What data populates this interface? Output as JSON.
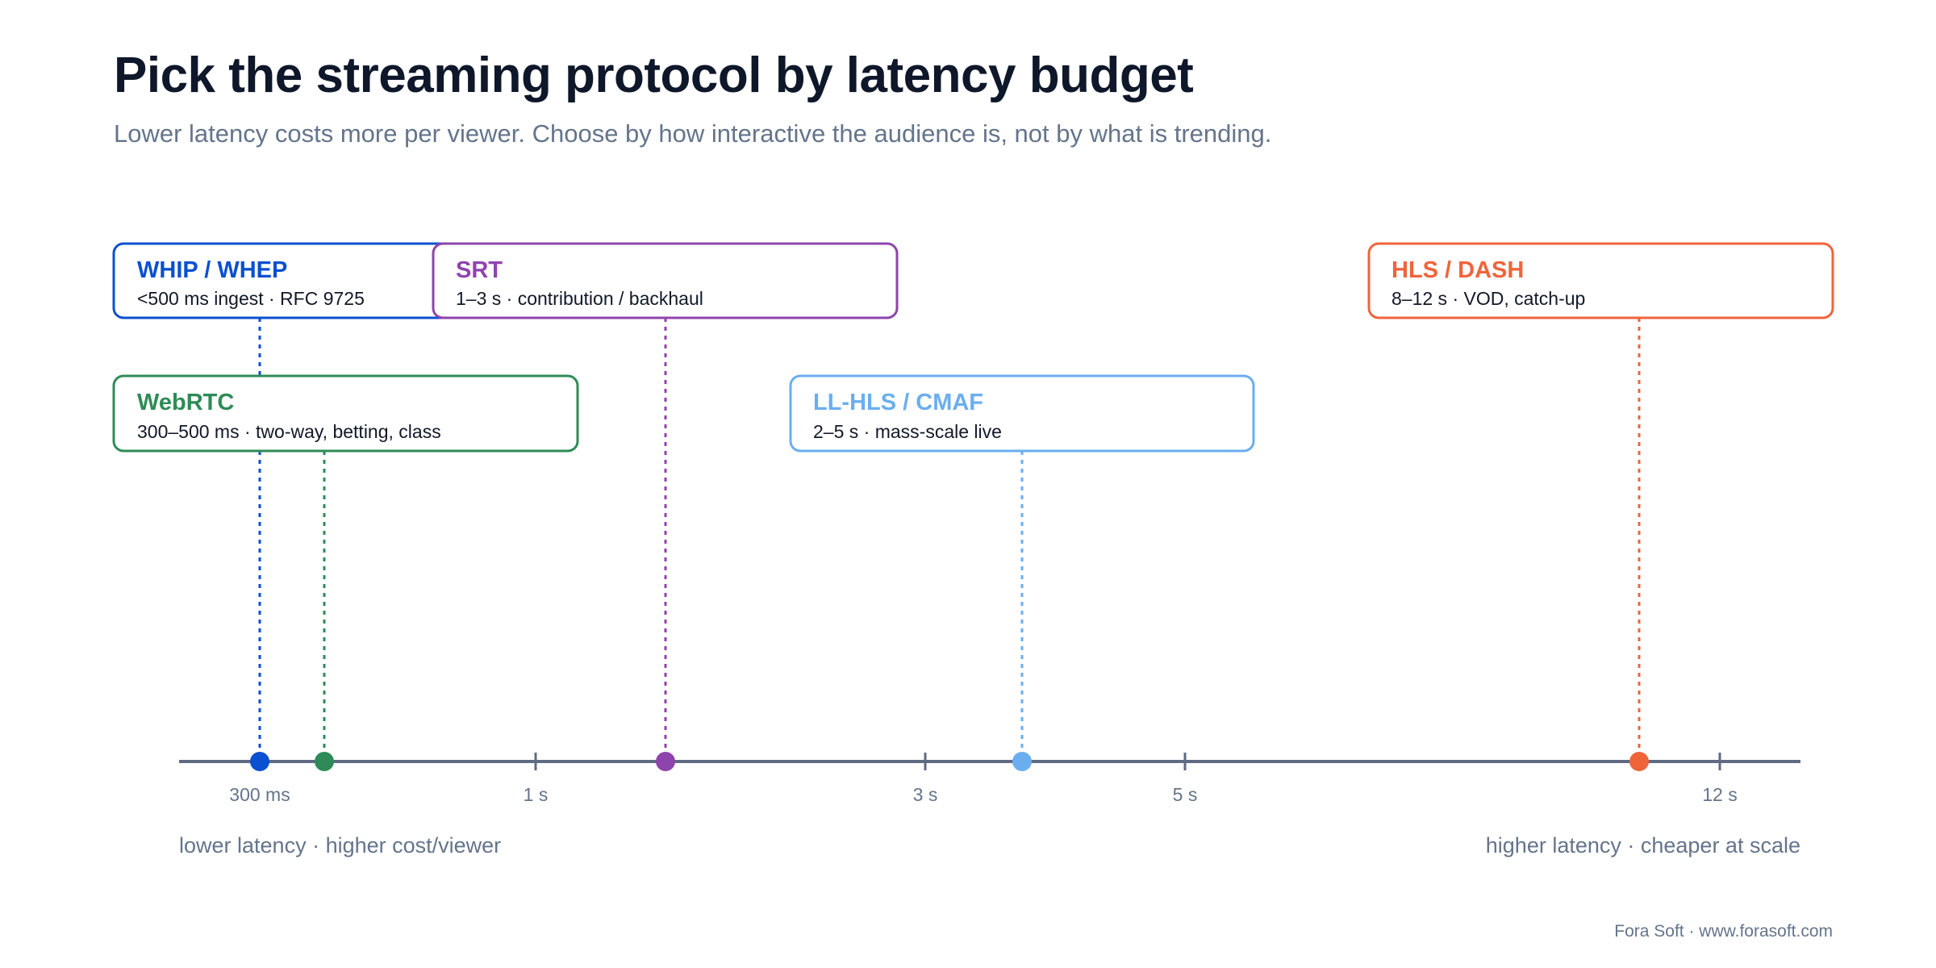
{
  "title": "Pick the streaming protocol by latency budget",
  "subtitle": "Lower latency costs more per viewer. Choose by how interactive the audience is, not by what is trending.",
  "axis": {
    "ticks": [
      {
        "label": "300 ms",
        "position": 0.3
      },
      {
        "label": "1 s",
        "position": 1
      },
      {
        "label": "3 s",
        "position": 3
      },
      {
        "label": "5 s",
        "position": 5
      },
      {
        "label": "12 s",
        "position": 12
      }
    ],
    "left_label": "lower latency · higher cost/viewer",
    "right_label": "higher latency · cheaper at scale"
  },
  "protocols": [
    {
      "name": "WHIP / WHEP",
      "desc": "<500 ms ingest · RFC 9725",
      "color": "#0b50d0",
      "latency_s": 0.3
    },
    {
      "name": "WebRTC",
      "desc": "300–500 ms · two-way, betting, class",
      "color": "#2e8b57",
      "latency_s": 0.4
    },
    {
      "name": "SRT",
      "desc": "1–3 s · contribution / backhaul",
      "color": "#8e44ad",
      "latency_s": 1.5
    },
    {
      "name": "LL-HLS / CMAF",
      "desc": "2–5 s · mass-scale live",
      "color": "#6aaef0",
      "latency_s": 3.6
    },
    {
      "name": "HLS / DASH",
      "desc": "8–12 s · VOD, catch-up",
      "color": "#f0643a",
      "latency_s": 10
    }
  ],
  "footer": "Fora Soft · www.forasoft.com",
  "colors": {
    "axis": "#5e6b82",
    "title": "#0f172a",
    "muted": "#64748b"
  }
}
